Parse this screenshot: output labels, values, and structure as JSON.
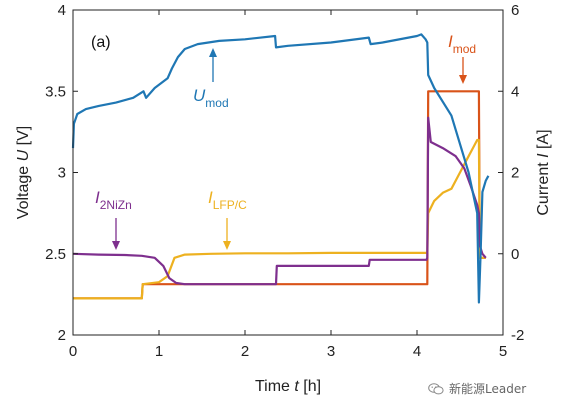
{
  "chart_data": {
    "type": "line",
    "panel_label": "(a)",
    "xlabel": {
      "prefix": "Time ",
      "var": "t",
      "unit": " [h]"
    },
    "ylabel_left": {
      "prefix": "Voltage ",
      "var": "U",
      "unit": " [V]"
    },
    "ylabel_right": {
      "prefix": "Current ",
      "var": "I",
      "unit": " [A]"
    },
    "xlim": [
      0,
      5
    ],
    "ylim_left": [
      2,
      4
    ],
    "ylim_right": [
      -2,
      6
    ],
    "xticks": [
      "0",
      "1",
      "2",
      "3",
      "4",
      "5"
    ],
    "yticks_left": [
      "2",
      "2.5",
      "3",
      "3.5",
      "4"
    ],
    "yticks_right": [
      "-2",
      "0",
      "2",
      "4",
      "6"
    ],
    "series": [
      {
        "key": "Umod",
        "axis": "left",
        "color": "#1f77b4",
        "label_main": "U",
        "label_sub": "mod",
        "x": [
          0.0,
          0.01,
          0.05,
          0.15,
          0.3,
          0.5,
          0.7,
          0.82,
          0.85,
          0.95,
          1.1,
          1.15,
          1.22,
          1.3,
          1.45,
          1.7,
          2.0,
          2.35,
          2.36,
          2.5,
          3.0,
          3.44,
          3.46,
          3.6,
          4.0,
          4.05,
          4.1,
          4.12,
          4.13,
          4.2,
          4.4,
          4.6,
          4.7,
          4.72,
          4.74,
          4.76,
          4.8,
          4.83
        ],
        "y": [
          3.15,
          3.3,
          3.36,
          3.39,
          3.41,
          3.43,
          3.46,
          3.5,
          3.46,
          3.52,
          3.58,
          3.64,
          3.71,
          3.76,
          3.79,
          3.81,
          3.82,
          3.84,
          3.77,
          3.78,
          3.8,
          3.83,
          3.79,
          3.8,
          3.84,
          3.85,
          3.82,
          3.8,
          3.6,
          3.52,
          3.35,
          3.0,
          2.75,
          2.2,
          2.5,
          2.88,
          2.95,
          2.98
        ]
      },
      {
        "key": "Imod",
        "axis": "right",
        "color": "#d95319",
        "label_main": "I",
        "label_sub": "mod",
        "x": [
          0.0,
          0.8,
          0.81,
          1.15,
          1.16,
          4.12,
          4.13,
          4.72,
          4.73,
          4.8
        ],
        "y": [
          -1.1,
          -1.1,
          -0.75,
          -0.75,
          -0.75,
          -0.75,
          4.0,
          4.0,
          -0.1,
          -0.1
        ]
      },
      {
        "key": "I2NiZn",
        "axis": "right",
        "color": "#7e2f8e",
        "label_main": "I",
        "label_sub": "2NiZn",
        "x": [
          0.0,
          0.3,
          0.6,
          0.8,
          0.95,
          1.05,
          1.12,
          1.2,
          1.3,
          2.36,
          2.37,
          3.44,
          3.45,
          4.05,
          4.11,
          4.12,
          4.13,
          4.16,
          4.3,
          4.45,
          4.55,
          4.62,
          4.7,
          4.72,
          4.73,
          4.76,
          4.8
        ],
        "y": [
          0.0,
          -0.02,
          -0.03,
          -0.05,
          -0.1,
          -0.3,
          -0.6,
          -0.72,
          -0.75,
          -0.75,
          -0.3,
          -0.3,
          -0.15,
          -0.15,
          -0.15,
          -0.1,
          3.35,
          2.75,
          2.6,
          2.4,
          2.1,
          1.7,
          1.2,
          1.0,
          0.2,
          0.0,
          -0.1
        ]
      },
      {
        "key": "ILFPC",
        "axis": "right",
        "color": "#edb120",
        "label_main": "I",
        "label_sub": "LFP/C",
        "x": [
          0.0,
          0.8,
          0.81,
          1.0,
          1.1,
          1.18,
          1.3,
          1.6,
          2.0,
          2.5,
          3.0,
          3.5,
          4.0,
          4.12,
          4.13,
          4.2,
          4.3,
          4.4,
          4.5,
          4.6,
          4.65,
          4.7,
          4.72,
          4.73,
          4.8
        ],
        "y": [
          -1.1,
          -1.1,
          -0.75,
          -0.7,
          -0.55,
          -0.1,
          -0.02,
          0.0,
          0.01,
          0.01,
          0.02,
          0.02,
          0.02,
          0.02,
          1.0,
          1.3,
          1.5,
          1.6,
          2.0,
          2.4,
          2.6,
          2.8,
          2.8,
          -0.1,
          -0.1
        ]
      }
    ]
  },
  "watermark": {
    "text": "新能源Leader",
    "icon": "wechat-icon"
  }
}
